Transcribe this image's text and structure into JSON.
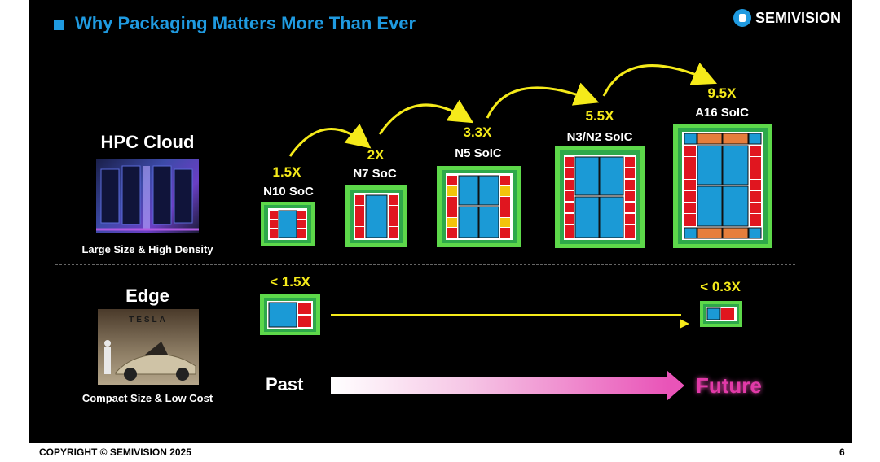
{
  "header": {
    "title": "Why Packaging Matters More Than Ever",
    "brand": "SEMIVISION"
  },
  "rows": {
    "hpc": {
      "title": "HPC Cloud",
      "caption": "Large Size & High Density",
      "photo": "server-rack-photo"
    },
    "edge": {
      "title": "Edge",
      "caption": "Compact Size & Low Cost",
      "photo": "tesla-robot-car-photo",
      "brand_on_photo": "TESLA"
    }
  },
  "hpc_chips": [
    {
      "multiplier": "1.5X",
      "name": "N10 SoC"
    },
    {
      "multiplier": "2X",
      "name": "N7 SoC"
    },
    {
      "multiplier": "3.3X",
      "name": "N5 SoIC"
    },
    {
      "multiplier": "5.5X",
      "name": "N3/N2 SoIC"
    },
    {
      "multiplier": "9.5X",
      "name": "A16 SoIC"
    }
  ],
  "edge_chips": [
    {
      "multiplier": "< 1.5X"
    },
    {
      "multiplier": "< 0.3X"
    }
  ],
  "timeline": {
    "past": "Past",
    "future": "Future"
  },
  "footer": {
    "copyright": "COPYRIGHT © SEMIVISION 2025",
    "page": "6"
  },
  "colors": {
    "title": "#1f9ae0",
    "multiplier": "#f5ea1a",
    "chip_border": "#5dd84a",
    "chip_die": "#1b9ad6",
    "chip_io": "#e0161f",
    "chip_yellow": "#f2c40c",
    "chip_orange": "#e67e3c",
    "future": "#e23aa8"
  }
}
